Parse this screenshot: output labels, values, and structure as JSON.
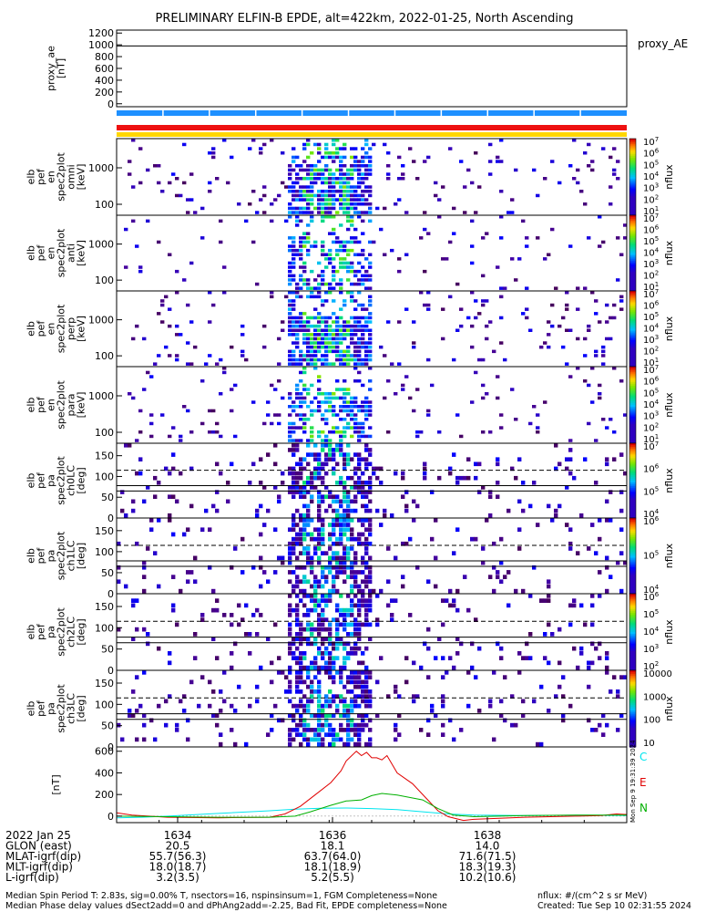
{
  "title": "PRELIMINARY ELFIN-B EPDE, alt=422km, 2022-01-25, North Ascending",
  "chart_data": [
    {
      "type": "line",
      "ylabel_lines": [
        "proxy_ae",
        "[nT]"
      ],
      "yticks": [
        "1200",
        "1000",
        "800",
        "600",
        "400",
        "200",
        "0"
      ],
      "ytick_values": [
        1200,
        1000,
        800,
        600,
        400,
        200,
        0
      ],
      "ylim": [
        -50,
        1250
      ],
      "series": [
        {
          "name": "proxy_AE",
          "color": "#000000",
          "x": [
            0,
            1
          ],
          "values": [
            980,
            980
          ]
        }
      ]
    },
    {
      "type": "heatmap",
      "ylabel_lines": [
        "elb",
        "pef",
        "en",
        "spec2plot",
        "omni",
        "[keV]"
      ],
      "yticks": [
        "1000",
        "100"
      ],
      "ytick_values": [
        1000,
        100
      ],
      "cbar_label": "nflux",
      "cbar_ticks": [
        "10^7",
        "10^6",
        "10^5",
        "10^4",
        "10^3",
        "10^2",
        "10^1"
      ]
    },
    {
      "type": "heatmap",
      "ylabel_lines": [
        "elb",
        "pef",
        "en",
        "spec2plot",
        "anti",
        "[keV]"
      ],
      "yticks": [
        "1000",
        "100"
      ],
      "ytick_values": [
        1000,
        100
      ],
      "cbar_label": "nflux",
      "cbar_ticks": [
        "10^7",
        "10^6",
        "10^5",
        "10^4",
        "10^3",
        "10^2",
        "10^1"
      ]
    },
    {
      "type": "heatmap",
      "ylabel_lines": [
        "elb",
        "pef",
        "en",
        "spec2plot",
        "perp",
        "[keV]"
      ],
      "yticks": [
        "1000",
        "100"
      ],
      "ytick_values": [
        1000,
        100
      ],
      "cbar_label": "nflux",
      "cbar_ticks": [
        "10^7",
        "10^6",
        "10^5",
        "10^4",
        "10^3",
        "10^2",
        "10^1"
      ]
    },
    {
      "type": "heatmap",
      "ylabel_lines": [
        "elb",
        "pef",
        "en",
        "spec2plot",
        "para",
        "[keV]"
      ],
      "yticks": [
        "1000",
        "100"
      ],
      "ytick_values": [
        1000,
        100
      ],
      "cbar_label": "nflux",
      "cbar_ticks": [
        "10^7",
        "10^6",
        "10^5",
        "10^4",
        "10^3",
        "10^2",
        "10^1"
      ]
    },
    {
      "type": "heatmap",
      "ylabel_lines": [
        "elb",
        "pef",
        "pa",
        "spec2plot",
        "ch0LC",
        "[deg]"
      ],
      "yticks": [
        "150",
        "100",
        "50",
        "0"
      ],
      "ytick_values": [
        150,
        100,
        50,
        0
      ],
      "cbar_label": "nflux",
      "cbar_ticks": [
        "10^7",
        "10^6",
        "10^5",
        "10^4"
      ]
    },
    {
      "type": "heatmap",
      "ylabel_lines": [
        "elb",
        "pef",
        "pa",
        "spec2plot",
        "ch1LC",
        "[deg]"
      ],
      "yticks": [
        "150",
        "100",
        "50",
        "0"
      ],
      "ytick_values": [
        150,
        100,
        50,
        0
      ],
      "cbar_label": "nflux",
      "cbar_ticks": [
        "10^6",
        "10^5",
        "10^4"
      ]
    },
    {
      "type": "heatmap",
      "ylabel_lines": [
        "elb",
        "pef",
        "pa",
        "spec2plot",
        "ch2LC",
        "[deg]"
      ],
      "yticks": [
        "150",
        "100",
        "50",
        "0"
      ],
      "ytick_values": [
        150,
        100,
        50,
        0
      ],
      "cbar_label": "nflux",
      "cbar_ticks": [
        "10^6",
        "10^5",
        "10^4",
        "10^3",
        "10^2"
      ]
    },
    {
      "type": "heatmap",
      "ylabel_lines": [
        "elb",
        "pef",
        "pa",
        "spec2plot",
        "ch3LC",
        "[deg]"
      ],
      "yticks": [
        "150",
        "100",
        "50",
        "0"
      ],
      "ytick_values": [
        150,
        100,
        50,
        0
      ],
      "cbar_label": "nflux",
      "cbar_ticks": [
        "10000",
        "1000",
        "100",
        "10"
      ]
    },
    {
      "type": "line",
      "ylabel_lines": [
        "[nT]"
      ],
      "yticks": [
        "600",
        "400",
        "200",
        "0"
      ],
      "ytick_values": [
        600,
        400,
        200,
        0
      ],
      "ylim": [
        -60,
        640
      ],
      "series": [
        {
          "name": "C",
          "color": "#00e5ee",
          "x": [
            0,
            0.05,
            0.1,
            0.2,
            0.3,
            0.35,
            0.4,
            0.45,
            0.5,
            0.55,
            0.6,
            0.65,
            0.7,
            0.8,
            0.9,
            1
          ],
          "values": [
            -15,
            -10,
            0,
            25,
            50,
            65,
            72,
            75,
            70,
            60,
            40,
            20,
            10,
            5,
            8,
            5
          ]
        },
        {
          "name": "E",
          "color": "#e00000",
          "x": [
            0,
            0.03,
            0.1,
            0.2,
            0.3,
            0.33,
            0.36,
            0.39,
            0.42,
            0.44,
            0.45,
            0.47,
            0.48,
            0.49,
            0.5,
            0.51,
            0.52,
            0.53,
            0.55,
            0.58,
            0.61,
            0.63,
            0.65,
            0.68,
            0.7,
            0.75,
            0.8,
            0.85,
            0.9,
            0.95,
            0.98,
            1
          ],
          "values": [
            30,
            10,
            -10,
            -15,
            -10,
            20,
            90,
            200,
            310,
            420,
            510,
            600,
            560,
            590,
            540,
            540,
            520,
            560,
            400,
            300,
            150,
            50,
            -5,
            -40,
            -30,
            -20,
            -10,
            -5,
            0,
            5,
            20,
            15
          ]
        },
        {
          "name": "N",
          "color": "#00b000",
          "x": [
            0,
            0.1,
            0.2,
            0.3,
            0.35,
            0.38,
            0.42,
            0.45,
            0.48,
            0.5,
            0.52,
            0.55,
            0.6,
            0.63,
            0.66,
            0.7,
            0.8,
            0.9,
            1
          ],
          "values": [
            0,
            -5,
            -10,
            -10,
            0,
            40,
            100,
            140,
            150,
            190,
            210,
            195,
            150,
            70,
            10,
            -5,
            5,
            10,
            10
          ]
        }
      ]
    }
  ],
  "xaxis": {
    "time_ticks": [
      "1634",
      "1636",
      "1638"
    ],
    "tick_time_values": [
      1634,
      1636,
      1638
    ],
    "row_labels": [
      "2022 Jan 25",
      "GLON (east)",
      "MLAT-igrf(dip)",
      "MLT-igrf(dip)",
      "L-igrf(dip)"
    ],
    "columns": [
      [
        "20.5",
        "55.7(56.3)",
        "18.0(18.7)",
        "3.2(3.5)"
      ],
      [
        "18.1",
        "63.7(64.0)",
        "18.1(18.9)",
        "5.2(5.5)"
      ],
      [
        "14.0",
        "71.6(71.5)",
        "18.3(19.3)",
        "10.2(10.6)"
      ]
    ]
  },
  "panel_labels": {
    "proxy": "proxy_AE",
    "c": "C",
    "e": "E",
    "n": "N"
  },
  "side_stamp": "Mon Sep 9 19:31:39 2024",
  "footer": {
    "line1": "Median Spin Period T: 2.83s, sig=0.00% T, nsectors=16, nspinsinsum=1, FGM Completeness=None",
    "line2": "Median Phase delay values dSect2add=0 and dPhAng2add=-2.25, Bad Fit, EPDE completeness=None",
    "units": "nflux: #/(cm^2 s sr MeV)",
    "created": "Created: Tue Sep 10 02:31:55 2024"
  },
  "colors": {
    "bar_blue": "#1e90ff",
    "bar_red": "#ee1111",
    "bar_yellow": "#ffd700",
    "axis": "#000000"
  }
}
